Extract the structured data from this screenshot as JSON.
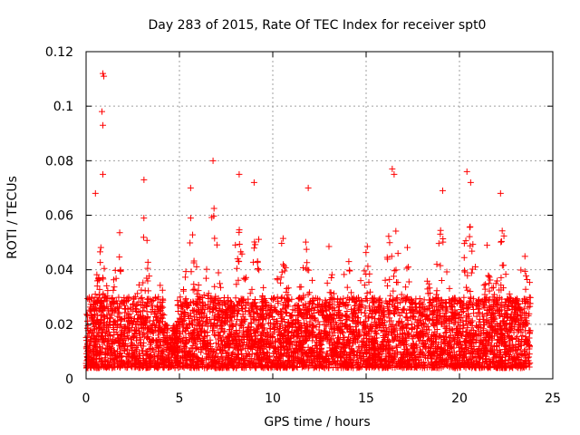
{
  "chart_data": {
    "type": "scatter",
    "title": "Day 283 of 2015, Rate Of TEC Index for receiver spt0",
    "xlabel": "GPS time / hours",
    "ylabel": "ROTI / TECUs",
    "xlim": [
      0,
      25
    ],
    "ylim": [
      0,
      0.12
    ],
    "x_ticks": [
      0,
      5,
      10,
      15,
      20,
      25
    ],
    "x_tick_labels": [
      "0",
      "5",
      "10",
      "15",
      "20",
      "25"
    ],
    "y_ticks": [
      0,
      0.02,
      0.04,
      0.06,
      0.08,
      0.1,
      0.12
    ],
    "y_tick_labels": [
      "0",
      "0.02",
      "0.04",
      "0.06",
      "0.08",
      "0.1",
      "0.12"
    ],
    "grid": true,
    "marker": "+",
    "color": "#ff0000",
    "series": [
      {
        "name": "spt0",
        "x_range": [
          0,
          23.8
        ],
        "typical_range": [
          0.004,
          0.03
        ],
        "notable_points": [
          {
            "x": 0.9,
            "y": 0.112
          },
          {
            "x": 0.95,
            "y": 0.111
          },
          {
            "x": 0.85,
            "y": 0.098
          },
          {
            "x": 0.9,
            "y": 0.093
          },
          {
            "x": 0.9,
            "y": 0.075
          },
          {
            "x": 3.1,
            "y": 0.073
          },
          {
            "x": 5.6,
            "y": 0.07
          },
          {
            "x": 6.8,
            "y": 0.08
          },
          {
            "x": 8.2,
            "y": 0.075
          },
          {
            "x": 9.0,
            "y": 0.072
          },
          {
            "x": 16.4,
            "y": 0.077
          },
          {
            "x": 16.5,
            "y": 0.075
          },
          {
            "x": 19.1,
            "y": 0.069
          },
          {
            "x": 20.4,
            "y": 0.076
          },
          {
            "x": 20.6,
            "y": 0.072
          },
          {
            "x": 22.2,
            "y": 0.068
          },
          {
            "x": 0.5,
            "y": 0.068
          },
          {
            "x": 11.9,
            "y": 0.07
          }
        ]
      }
    ]
  }
}
